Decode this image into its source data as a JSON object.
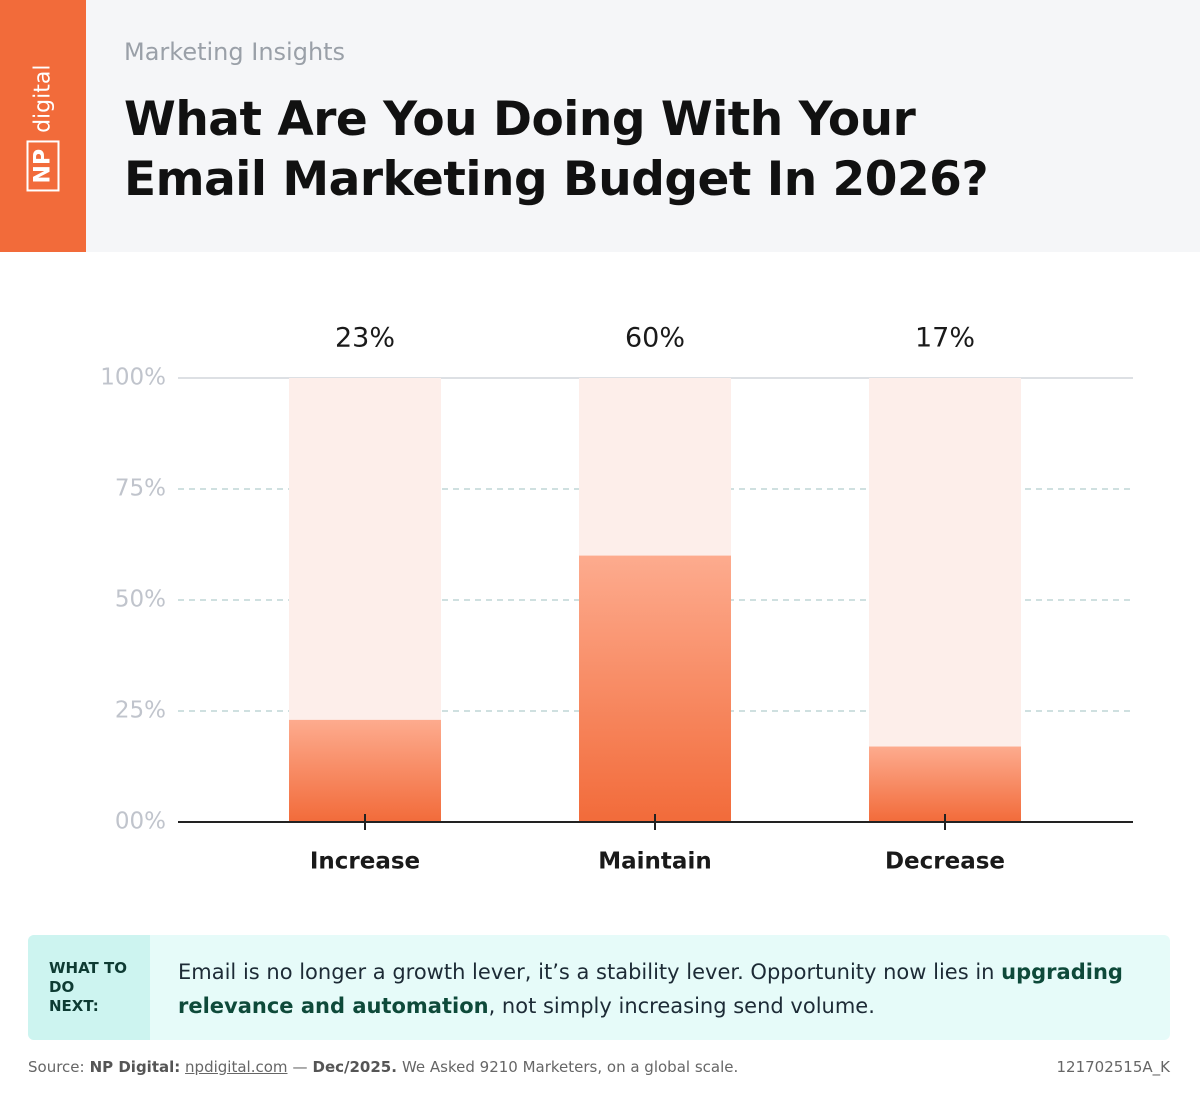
{
  "brand": {
    "logo_mark": "NP",
    "logo_text": "digital"
  },
  "header": {
    "kicker": "Marketing Insights",
    "title_lines": [
      "What Are You Doing With Your",
      "Email Marketing Budget In 2026?"
    ]
  },
  "chart_data": {
    "type": "bar",
    "categories": [
      "Increase",
      "Maintain",
      "Decrease"
    ],
    "values": [
      23,
      60,
      17
    ],
    "value_labels": [
      "23%",
      "60%",
      "17%"
    ],
    "color": "#f26b3a",
    "ylim": [
      0,
      100
    ],
    "yticks": [
      {
        "value": 0,
        "label": "00%"
      },
      {
        "value": 25,
        "label": "25%"
      },
      {
        "value": 50,
        "label": "50%"
      },
      {
        "value": 75,
        "label": "75%"
      },
      {
        "value": 100,
        "label": "100%"
      }
    ],
    "grid": true
  },
  "callout": {
    "label": "WHAT TO DO NEXT:",
    "text_before": "Email is no longer a growth lever, it’s a stability lever. Opportunity now lies in",
    "text_bold": "upgrading relevance and automation",
    "text_after": ", not simply increasing send volume."
  },
  "footer": {
    "source_label": "Source:",
    "publisher": "NP Digital:",
    "link": "npdigital.com",
    "separator": "—",
    "date": "Dec/2025.",
    "note": "We Asked 9210 Marketers, on a global scale.",
    "code": "121702515A_K"
  }
}
